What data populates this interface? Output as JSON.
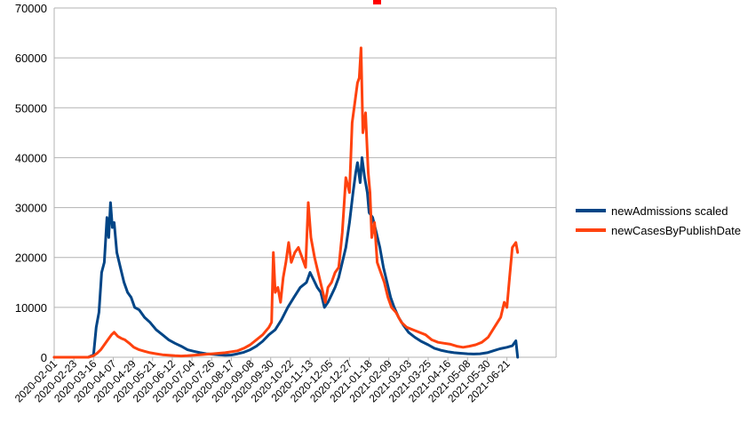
{
  "chart_data": {
    "type": "line",
    "title": "",
    "xlabel": "",
    "ylabel": "",
    "ylim": [
      0,
      70000
    ],
    "yticks": [
      0,
      10000,
      20000,
      30000,
      40000,
      50000,
      60000,
      70000
    ],
    "grid": true,
    "legend_position": "right",
    "x_tick_labels": [
      "2020-02-01",
      "2020-02-23",
      "2020-03-16",
      "2020-04-07",
      "2020-04-29",
      "2020-05-21",
      "2020-06-12",
      "2020-07-04",
      "2020-07-26",
      "2020-08-17",
      "2020-09-08",
      "2020-09-30",
      "2020-10-22",
      "2020-11-13",
      "2020-12-05",
      "2020-12-27",
      "2021-01-18",
      "2021-02-09",
      "2021-03-03",
      "2021-03-25",
      "2021-04-16",
      "2021-05-08",
      "2021-05-30",
      "2021-06-21"
    ],
    "series": [
      {
        "name": "newAdmissions scaled",
        "color": "#004586",
        "points": [
          [
            "2020-02-01",
            0
          ],
          [
            "2020-02-23",
            0
          ],
          [
            "2020-03-10",
            0
          ],
          [
            "2020-03-16",
            500
          ],
          [
            "2020-03-19",
            6000
          ],
          [
            "2020-03-22",
            9000
          ],
          [
            "2020-03-25",
            17000
          ],
          [
            "2020-03-28",
            19000
          ],
          [
            "2020-03-31",
            28000
          ],
          [
            "2020-04-02",
            24000
          ],
          [
            "2020-04-04",
            31000
          ],
          [
            "2020-04-06",
            26000
          ],
          [
            "2020-04-08",
            27000
          ],
          [
            "2020-04-11",
            21000
          ],
          [
            "2020-04-15",
            18000
          ],
          [
            "2020-04-19",
            15000
          ],
          [
            "2020-04-23",
            13000
          ],
          [
            "2020-04-27",
            12000
          ],
          [
            "2020-05-01",
            10000
          ],
          [
            "2020-05-06",
            9500
          ],
          [
            "2020-05-12",
            8000
          ],
          [
            "2020-05-18",
            7000
          ],
          [
            "2020-05-25",
            5500
          ],
          [
            "2020-06-01",
            4500
          ],
          [
            "2020-06-08",
            3500
          ],
          [
            "2020-06-15",
            2800
          ],
          [
            "2020-06-22",
            2200
          ],
          [
            "2020-06-29",
            1500
          ],
          [
            "2020-07-06",
            1200
          ],
          [
            "2020-07-13",
            900
          ],
          [
            "2020-07-20",
            700
          ],
          [
            "2020-07-27",
            600
          ],
          [
            "2020-08-03",
            500
          ],
          [
            "2020-08-10",
            400
          ],
          [
            "2020-08-17",
            450
          ],
          [
            "2020-08-24",
            700
          ],
          [
            "2020-08-31",
            1000
          ],
          [
            "2020-09-07",
            1500
          ],
          [
            "2020-09-14",
            2200
          ],
          [
            "2020-09-21",
            3200
          ],
          [
            "2020-09-28",
            4500
          ],
          [
            "2020-10-05",
            5500
          ],
          [
            "2020-10-12",
            7500
          ],
          [
            "2020-10-19",
            10000
          ],
          [
            "2020-10-26",
            12000
          ],
          [
            "2020-11-02",
            14000
          ],
          [
            "2020-11-09",
            15000
          ],
          [
            "2020-11-13",
            17000
          ],
          [
            "2020-11-17",
            15500
          ],
          [
            "2020-11-21",
            14000
          ],
          [
            "2020-11-25",
            13000
          ],
          [
            "2020-11-29",
            10000
          ],
          [
            "2020-12-03",
            11000
          ],
          [
            "2020-12-07",
            12500
          ],
          [
            "2020-12-11",
            14000
          ],
          [
            "2020-12-15",
            16000
          ],
          [
            "2020-12-19",
            19000
          ],
          [
            "2020-12-23",
            22000
          ],
          [
            "2020-12-27",
            27000
          ],
          [
            "2020-12-31",
            33000
          ],
          [
            "2021-01-03",
            37000
          ],
          [
            "2021-01-05",
            39000
          ],
          [
            "2021-01-08",
            35000
          ],
          [
            "2021-01-10",
            40000
          ],
          [
            "2021-01-13",
            36000
          ],
          [
            "2021-01-16",
            33000
          ],
          [
            "2021-01-18",
            29000
          ],
          [
            "2021-01-22",
            28000
          ],
          [
            "2021-01-26",
            25000
          ],
          [
            "2021-01-30",
            22000
          ],
          [
            "2021-02-03",
            18000
          ],
          [
            "2021-02-07",
            15000
          ],
          [
            "2021-02-11",
            12000
          ],
          [
            "2021-02-15",
            10000
          ],
          [
            "2021-02-20",
            8000
          ],
          [
            "2021-02-25",
            6500
          ],
          [
            "2021-03-03",
            5000
          ],
          [
            "2021-03-10",
            4000
          ],
          [
            "2021-03-17",
            3200
          ],
          [
            "2021-03-25",
            2500
          ],
          [
            "2021-04-01",
            1800
          ],
          [
            "2021-04-08",
            1400
          ],
          [
            "2021-04-16",
            1100
          ],
          [
            "2021-04-23",
            900
          ],
          [
            "2021-04-30",
            800
          ],
          [
            "2021-05-08",
            700
          ],
          [
            "2021-05-15",
            650
          ],
          [
            "2021-05-22",
            700
          ],
          [
            "2021-05-30",
            900
          ],
          [
            "2021-06-06",
            1300
          ],
          [
            "2021-06-13",
            1700
          ],
          [
            "2021-06-21",
            2000
          ],
          [
            "2021-06-27",
            2300
          ],
          [
            "2021-07-01",
            3300
          ],
          [
            "2021-07-03",
            0
          ]
        ]
      },
      {
        "name": "newCasesByPublishDate",
        "color": "#ff420e",
        "points": [
          [
            "2020-02-01",
            0
          ],
          [
            "2020-02-23",
            0
          ],
          [
            "2020-03-10",
            0
          ],
          [
            "2020-03-16",
            300
          ],
          [
            "2020-03-20",
            800
          ],
          [
            "2020-03-24",
            1500
          ],
          [
            "2020-03-28",
            2500
          ],
          [
            "2020-04-01",
            3500
          ],
          [
            "2020-04-05",
            4500
          ],
          [
            "2020-04-08",
            5000
          ],
          [
            "2020-04-12",
            4200
          ],
          [
            "2020-04-16",
            3800
          ],
          [
            "2020-04-20",
            3500
          ],
          [
            "2020-04-25",
            2800
          ],
          [
            "2020-04-30",
            2000
          ],
          [
            "2020-05-06",
            1500
          ],
          [
            "2020-05-12",
            1200
          ],
          [
            "2020-05-18",
            900
          ],
          [
            "2020-05-25",
            700
          ],
          [
            "2020-06-01",
            500
          ],
          [
            "2020-06-08",
            400
          ],
          [
            "2020-06-15",
            300
          ],
          [
            "2020-06-22",
            250
          ],
          [
            "2020-06-29",
            300
          ],
          [
            "2020-07-06",
            400
          ],
          [
            "2020-07-13",
            500
          ],
          [
            "2020-07-20",
            600
          ],
          [
            "2020-07-27",
            700
          ],
          [
            "2020-08-03",
            800
          ],
          [
            "2020-08-10",
            900
          ],
          [
            "2020-08-17",
            1100
          ],
          [
            "2020-08-24",
            1300
          ],
          [
            "2020-08-31",
            1800
          ],
          [
            "2020-09-07",
            2500
          ],
          [
            "2020-09-14",
            3500
          ],
          [
            "2020-09-21",
            4500
          ],
          [
            "2020-09-28",
            6000
          ],
          [
            "2020-10-01",
            7000
          ],
          [
            "2020-10-03",
            21000
          ],
          [
            "2020-10-05",
            13000
          ],
          [
            "2020-10-08",
            14000
          ],
          [
            "2020-10-11",
            11000
          ],
          [
            "2020-10-14",
            16000
          ],
          [
            "2020-10-17",
            19000
          ],
          [
            "2020-10-20",
            23000
          ],
          [
            "2020-10-23",
            19000
          ],
          [
            "2020-10-27",
            21000
          ],
          [
            "2020-10-31",
            22000
          ],
          [
            "2020-11-04",
            20000
          ],
          [
            "2020-11-08",
            18000
          ],
          [
            "2020-11-11",
            31000
          ],
          [
            "2020-11-14",
            24000
          ],
          [
            "2020-11-18",
            20000
          ],
          [
            "2020-11-22",
            17000
          ],
          [
            "2020-11-26",
            14000
          ],
          [
            "2020-11-30",
            11000
          ],
          [
            "2020-12-03",
            14000
          ],
          [
            "2020-12-07",
            15000
          ],
          [
            "2020-12-11",
            17000
          ],
          [
            "2020-12-15",
            18000
          ],
          [
            "2020-12-19",
            25000
          ],
          [
            "2020-12-23",
            36000
          ],
          [
            "2020-12-27",
            33000
          ],
          [
            "2020-12-30",
            47000
          ],
          [
            "2021-01-02",
            51000
          ],
          [
            "2021-01-05",
            55000
          ],
          [
            "2021-01-07",
            56000
          ],
          [
            "2021-01-09",
            62000
          ],
          [
            "2021-01-11",
            45000
          ],
          [
            "2021-01-14",
            49000
          ],
          [
            "2021-01-17",
            37000
          ],
          [
            "2021-01-19",
            33000
          ],
          [
            "2021-01-21",
            24000
          ],
          [
            "2021-01-24",
            27000
          ],
          [
            "2021-01-27",
            19000
          ],
          [
            "2021-01-31",
            17000
          ],
          [
            "2021-02-04",
            15000
          ],
          [
            "2021-02-08",
            12000
          ],
          [
            "2021-02-12",
            10000
          ],
          [
            "2021-02-17",
            9000
          ],
          [
            "2021-02-23",
            7000
          ],
          [
            "2021-03-01",
            6000
          ],
          [
            "2021-03-08",
            5500
          ],
          [
            "2021-03-15",
            5000
          ],
          [
            "2021-03-22",
            4500
          ],
          [
            "2021-03-29",
            3500
          ],
          [
            "2021-04-05",
            3000
          ],
          [
            "2021-04-12",
            2800
          ],
          [
            "2021-04-19",
            2600
          ],
          [
            "2021-04-26",
            2200
          ],
          [
            "2021-05-03",
            2000
          ],
          [
            "2021-05-10",
            2200
          ],
          [
            "2021-05-17",
            2500
          ],
          [
            "2021-05-24",
            3000
          ],
          [
            "2021-05-31",
            4000
          ],
          [
            "2021-06-07",
            6000
          ],
          [
            "2021-06-14",
            8000
          ],
          [
            "2021-06-18",
            11000
          ],
          [
            "2021-06-21",
            10000
          ],
          [
            "2021-06-24",
            16000
          ],
          [
            "2021-06-27",
            22000
          ],
          [
            "2021-07-01",
            23000
          ],
          [
            "2021-07-03",
            21000
          ]
        ]
      }
    ]
  }
}
